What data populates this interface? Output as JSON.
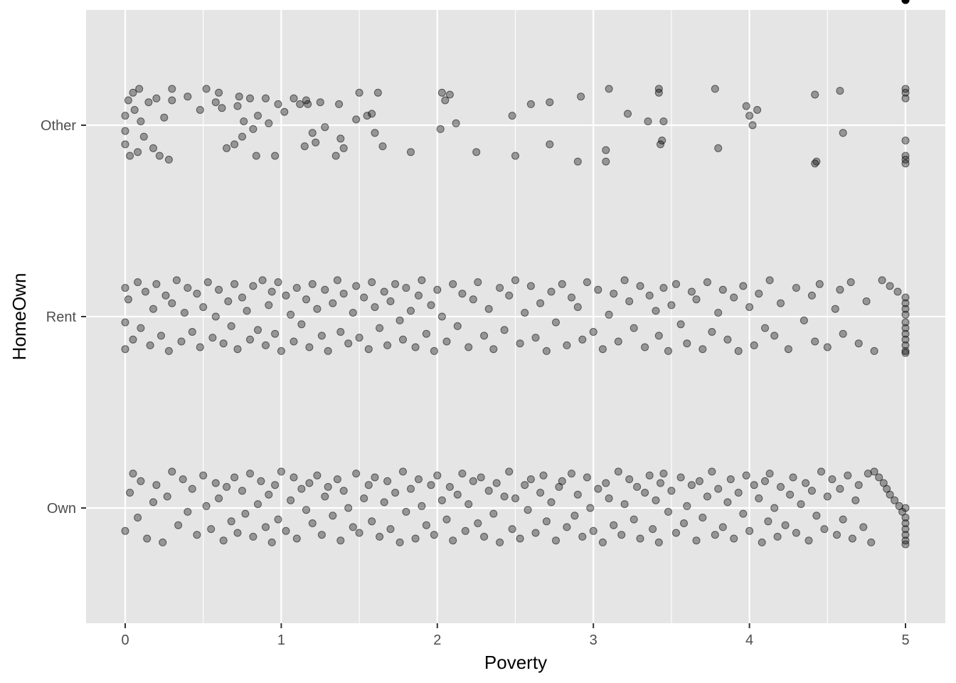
{
  "chart_data": {
    "type": "scatter",
    "xlabel": "Poverty",
    "ylabel": "HomeOwn",
    "x_ticks": [
      0,
      1,
      2,
      3,
      4,
      5
    ],
    "x_tick_labels": [
      "0",
      "1",
      "2",
      "3",
      "4",
      "5"
    ],
    "xlim": [
      -0.25,
      5.25
    ],
    "categories": [
      "Own",
      "Rent",
      "Other"
    ],
    "jitter": 0.4,
    "point_color": "#000000",
    "point_alpha": 0.35,
    "panel_background": "#e5e5e5",
    "grid_color": "#ffffff",
    "grid": true,
    "series": [
      {
        "category": "Own",
        "x": [
          0.0,
          0.03,
          0.05,
          0.08,
          0.1,
          0.14,
          0.18,
          0.2,
          0.24,
          0.27,
          0.3,
          0.34,
          0.37,
          0.4,
          0.43,
          0.46,
          0.5,
          0.52,
          0.55,
          0.58,
          0.6,
          0.63,
          0.65,
          0.68,
          0.7,
          0.72,
          0.75,
          0.77,
          0.8,
          0.82,
          0.85,
          0.87,
          0.9,
          0.92,
          0.94,
          0.96,
          0.98,
          1.0,
          1.03,
          1.06,
          1.08,
          1.1,
          1.13,
          1.16,
          1.18,
          1.2,
          1.23,
          1.26,
          1.28,
          1.3,
          1.33,
          1.36,
          1.38,
          1.4,
          1.43,
          1.46,
          1.48,
          1.5,
          1.53,
          1.56,
          1.58,
          1.6,
          1.63,
          1.66,
          1.68,
          1.7,
          1.73,
          1.76,
          1.78,
          1.8,
          1.83,
          1.86,
          1.88,
          1.9,
          1.93,
          1.96,
          1.98,
          2.0,
          2.03,
          2.06,
          2.08,
          2.1,
          2.13,
          2.16,
          2.18,
          2.2,
          2.23,
          2.26,
          2.28,
          2.3,
          2.33,
          2.36,
          2.38,
          2.4,
          2.43,
          2.46,
          2.48,
          2.5,
          2.53,
          2.56,
          2.58,
          2.6,
          2.63,
          2.66,
          2.68,
          2.7,
          2.73,
          2.76,
          2.78,
          2.8,
          2.83,
          2.86,
          2.88,
          2.9,
          2.93,
          2.96,
          2.98,
          3.0,
          3.03,
          3.06,
          3.08,
          3.1,
          3.13,
          3.16,
          3.18,
          3.2,
          3.23,
          3.26,
          3.28,
          3.3,
          3.33,
          3.36,
          3.38,
          3.4,
          3.42,
          3.43,
          3.45,
          3.48,
          3.5,
          3.53,
          3.56,
          3.58,
          3.6,
          3.63,
          3.66,
          3.68,
          3.7,
          3.73,
          3.76,
          3.78,
          3.8,
          3.83,
          3.86,
          3.88,
          3.9,
          3.93,
          3.96,
          3.98,
          4.0,
          4.03,
          4.06,
          4.08,
          4.1,
          4.12,
          4.13,
          4.16,
          4.18,
          4.2,
          4.23,
          4.26,
          4.28,
          4.3,
          4.33,
          4.36,
          4.38,
          4.4,
          4.43,
          4.46,
          4.48,
          4.5,
          4.53,
          4.56,
          4.58,
          4.6,
          4.63,
          4.66,
          4.68,
          4.7,
          4.73,
          4.76,
          4.78,
          4.8,
          4.83,
          4.86,
          4.88,
          4.9,
          4.93,
          4.96,
          4.98,
          5.0,
          5.0,
          5.0,
          5.0,
          5.0,
          5.0,
          5.0,
          5.0,
          5.0,
          5.0,
          5.0,
          5.0,
          5.0,
          5.0,
          5.0,
          5.0
        ],
        "y_offset": [
          -0.12,
          0.08,
          0.18,
          -0.05,
          0.14,
          -0.16,
          0.03,
          0.12,
          -0.18,
          0.06,
          0.19,
          -0.09,
          0.15,
          -0.02,
          0.1,
          -0.14,
          0.17,
          0.01,
          -0.11,
          0.13,
          0.05,
          -0.17,
          0.11,
          -0.07,
          0.16,
          -0.13,
          0.09,
          -0.03,
          0.18,
          -0.15,
          0.02,
          0.14,
          -0.1,
          0.07,
          -0.18,
          0.12,
          -0.06,
          0.19,
          -0.12,
          0.04,
          0.16,
          -0.16,
          0.1,
          -0.01,
          0.13,
          -0.08,
          0.17,
          -0.14,
          0.06,
          0.11,
          -0.04,
          0.15,
          -0.17,
          0.09,
          0.0,
          -0.1,
          0.18,
          -0.13,
          0.05,
          0.12,
          -0.07,
          0.16,
          -0.15,
          0.03,
          0.14,
          -0.11,
          0.08,
          -0.18,
          0.19,
          -0.02,
          0.1,
          -0.16,
          0.15,
          0.01,
          -0.09,
          0.12,
          -0.14,
          0.17,
          0.04,
          -0.06,
          0.11,
          -0.17,
          0.07,
          0.18,
          -0.12,
          0.02,
          0.14,
          -0.08,
          0.16,
          -0.15,
          0.09,
          -0.03,
          0.13,
          -0.18,
          0.06,
          0.19,
          -0.11,
          0.05,
          -0.16,
          0.12,
          -0.01,
          0.15,
          -0.13,
          0.08,
          0.17,
          -0.07,
          0.03,
          -0.17,
          0.11,
          0.14,
          -0.1,
          0.18,
          -0.04,
          0.07,
          -0.15,
          0.16,
          0.0,
          -0.12,
          0.1,
          -0.18,
          0.13,
          0.05,
          -0.09,
          0.19,
          -0.14,
          0.02,
          0.15,
          -0.06,
          0.11,
          -0.16,
          0.08,
          0.17,
          -0.11,
          0.04,
          -0.18,
          0.13,
          0.18,
          -0.02,
          0.09,
          -0.13,
          0.16,
          -0.08,
          0.01,
          0.12,
          -0.17,
          0.14,
          -0.05,
          0.06,
          0.19,
          -0.14,
          0.1,
          -0.1,
          0.03,
          0.15,
          -0.16,
          0.08,
          -0.03,
          0.17,
          -0.12,
          0.12,
          0.05,
          -0.18,
          0.14,
          -0.07,
          0.18,
          0.0,
          -0.15,
          0.11,
          -0.09,
          0.07,
          0.16,
          -0.13,
          0.02,
          0.13,
          -0.17,
          0.09,
          -0.04,
          0.19,
          -0.11,
          0.06,
          0.15,
          -0.14,
          0.1,
          -0.06,
          0.17,
          -0.16,
          0.04,
          0.12,
          -0.1,
          0.18,
          -0.18,
          0.19,
          0.16,
          0.13,
          0.1,
          0.07,
          0.04,
          0.01,
          -0.02,
          -0.05,
          -0.08,
          -0.11,
          -0.14,
          -0.17,
          -0.19,
          0.0
        ]
      },
      {
        "category": "Rent",
        "x": [
          0.0,
          0.0,
          0.0,
          0.02,
          0.05,
          0.08,
          0.1,
          0.13,
          0.16,
          0.18,
          0.2,
          0.23,
          0.26,
          0.28,
          0.3,
          0.33,
          0.36,
          0.38,
          0.4,
          0.43,
          0.46,
          0.48,
          0.5,
          0.53,
          0.56,
          0.58,
          0.6,
          0.63,
          0.66,
          0.68,
          0.7,
          0.72,
          0.75,
          0.78,
          0.8,
          0.82,
          0.85,
          0.88,
          0.9,
          0.92,
          0.94,
          0.96,
          0.98,
          1.0,
          1.03,
          1.06,
          1.08,
          1.1,
          1.13,
          1.16,
          1.18,
          1.2,
          1.23,
          1.26,
          1.28,
          1.3,
          1.33,
          1.36,
          1.38,
          1.4,
          1.43,
          1.46,
          1.48,
          1.5,
          1.53,
          1.56,
          1.58,
          1.6,
          1.63,
          1.66,
          1.68,
          1.7,
          1.73,
          1.76,
          1.78,
          1.8,
          1.83,
          1.86,
          1.88,
          1.9,
          1.93,
          1.96,
          1.98,
          2.0,
          2.03,
          2.06,
          2.1,
          2.13,
          2.16,
          2.2,
          2.23,
          2.26,
          2.3,
          2.33,
          2.36,
          2.4,
          2.43,
          2.46,
          2.5,
          2.53,
          2.56,
          2.6,
          2.63,
          2.66,
          2.7,
          2.73,
          2.76,
          2.8,
          2.83,
          2.86,
          2.9,
          2.93,
          2.96,
          3.0,
          3.03,
          3.06,
          3.1,
          3.13,
          3.16,
          3.2,
          3.23,
          3.26,
          3.3,
          3.33,
          3.36,
          3.4,
          3.42,
          3.45,
          3.48,
          3.5,
          3.53,
          3.56,
          3.6,
          3.63,
          3.66,
          3.7,
          3.73,
          3.76,
          3.8,
          3.83,
          3.86,
          3.9,
          3.93,
          3.96,
          4.0,
          4.03,
          4.06,
          4.1,
          4.13,
          4.16,
          4.2,
          4.25,
          4.3,
          4.35,
          4.4,
          4.42,
          4.45,
          4.5,
          4.55,
          4.58,
          4.6,
          4.65,
          4.7,
          4.75,
          4.8,
          4.85,
          4.9,
          4.95,
          5.0,
          5.0,
          5.0,
          5.0,
          5.0,
          5.0,
          5.0,
          5.0,
          5.0,
          5.0,
          5.0,
          5.0,
          5.0,
          5.0
        ],
        "y_offset": [
          0.15,
          -0.03,
          -0.17,
          0.09,
          -0.12,
          0.18,
          -0.06,
          0.13,
          -0.15,
          0.04,
          0.17,
          -0.1,
          0.11,
          -0.18,
          0.07,
          0.19,
          -0.13,
          0.02,
          0.15,
          -0.08,
          0.12,
          -0.16,
          0.05,
          0.18,
          -0.11,
          0.0,
          0.14,
          -0.14,
          0.08,
          -0.05,
          0.17,
          -0.17,
          0.1,
          0.03,
          -0.12,
          0.16,
          -0.07,
          0.19,
          -0.15,
          0.06,
          0.13,
          -0.09,
          0.18,
          -0.18,
          0.11,
          0.01,
          -0.13,
          0.15,
          -0.04,
          0.09,
          -0.16,
          0.17,
          0.04,
          -0.1,
          0.14,
          -0.18,
          0.07,
          0.19,
          -0.08,
          0.12,
          -0.14,
          0.02,
          0.16,
          -0.11,
          0.1,
          -0.17,
          0.18,
          0.05,
          -0.06,
          0.13,
          -0.15,
          0.08,
          0.17,
          -0.02,
          -0.12,
          0.15,
          0.03,
          -0.16,
          0.11,
          0.19,
          -0.09,
          0.06,
          -0.18,
          0.14,
          0.0,
          -0.13,
          0.17,
          -0.05,
          0.12,
          -0.16,
          0.09,
          0.18,
          -0.1,
          0.04,
          -0.17,
          0.15,
          -0.07,
          0.11,
          0.19,
          -0.14,
          0.02,
          0.16,
          -0.11,
          0.07,
          -0.18,
          0.13,
          -0.03,
          0.17,
          -0.15,
          0.1,
          0.05,
          -0.12,
          0.18,
          -0.08,
          0.14,
          -0.17,
          0.01,
          0.12,
          -0.13,
          0.19,
          0.08,
          -0.06,
          0.16,
          -0.16,
          0.11,
          0.03,
          -0.1,
          0.15,
          -0.18,
          0.06,
          0.17,
          -0.04,
          -0.14,
          0.13,
          0.09,
          -0.17,
          0.18,
          -0.08,
          0.02,
          0.14,
          -0.12,
          0.1,
          -0.18,
          0.16,
          0.05,
          -0.15,
          0.12,
          -0.06,
          0.19,
          -0.1,
          0.07,
          -0.17,
          0.15,
          -0.02,
          0.11,
          -0.13,
          0.17,
          -0.16,
          0.04,
          0.14,
          -0.09,
          0.18,
          -0.14,
          0.08,
          -0.18,
          0.19,
          0.16,
          0.13,
          0.1,
          0.07,
          0.04,
          0.01,
          -0.03,
          -0.06,
          -0.09,
          -0.12,
          -0.15,
          -0.18,
          -0.19
        ]
      },
      {
        "category": "Other",
        "x": [
          0.0,
          0.0,
          0.0,
          0.02,
          0.03,
          0.05,
          0.06,
          0.08,
          0.09,
          0.1,
          0.12,
          0.15,
          0.18,
          0.2,
          0.22,
          0.25,
          0.28,
          0.3,
          0.3,
          0.4,
          0.48,
          0.52,
          0.58,
          0.6,
          0.62,
          0.65,
          0.7,
          0.72,
          0.73,
          0.75,
          0.76,
          0.8,
          0.82,
          0.84,
          0.85,
          0.9,
          0.92,
          0.96,
          0.98,
          1.02,
          1.08,
          1.12,
          1.15,
          1.16,
          1.17,
          1.2,
          1.22,
          1.25,
          1.28,
          1.35,
          1.37,
          1.38,
          1.4,
          1.48,
          1.5,
          1.55,
          1.58,
          1.6,
          1.62,
          1.65,
          1.83,
          2.02,
          2.03,
          2.05,
          2.08,
          2.12,
          2.25,
          2.48,
          2.5,
          2.6,
          2.72,
          2.72,
          2.9,
          2.92,
          3.08,
          3.08,
          3.1,
          3.22,
          3.35,
          3.42,
          3.42,
          3.43,
          3.44,
          3.45,
          3.78,
          3.8,
          3.98,
          4.0,
          4.02,
          4.05,
          4.42,
          4.42,
          4.43,
          4.58,
          4.6,
          5.0,
          5.0,
          5.0,
          5.0,
          5.0,
          5.0,
          5.0
        ],
        "y_offset": [
          0.05,
          -0.03,
          -0.1,
          0.13,
          -0.16,
          0.17,
          0.08,
          -0.14,
          0.19,
          0.02,
          -0.06,
          0.12,
          -0.12,
          0.14,
          -0.16,
          0.04,
          -0.18,
          0.19,
          0.13,
          0.15,
          0.08,
          0.19,
          0.12,
          0.17,
          0.09,
          -0.12,
          -0.1,
          0.1,
          0.15,
          -0.06,
          0.02,
          0.14,
          -0.02,
          -0.16,
          0.05,
          0.14,
          0.01,
          -0.16,
          0.11,
          0.07,
          0.14,
          0.11,
          -0.11,
          0.13,
          0.11,
          -0.04,
          -0.09,
          0.12,
          -0.01,
          -0.16,
          0.11,
          -0.07,
          -0.12,
          0.03,
          0.17,
          0.05,
          0.06,
          -0.04,
          0.17,
          -0.11,
          -0.14,
          -0.02,
          0.17,
          0.13,
          0.16,
          0.01,
          -0.14,
          0.05,
          -0.16,
          0.11,
          0.12,
          -0.1,
          -0.19,
          0.15,
          -0.13,
          -0.19,
          0.19,
          0.06,
          0.02,
          0.17,
          0.19,
          -0.1,
          -0.08,
          0.02,
          0.19,
          -0.12,
          0.1,
          0.05,
          0.0,
          0.08,
          0.16,
          -0.2,
          -0.19,
          0.18,
          -0.04,
          0.19,
          0.14,
          -0.08,
          -0.16,
          -0.18,
          -0.2,
          0.17
        ]
      }
    ]
  }
}
